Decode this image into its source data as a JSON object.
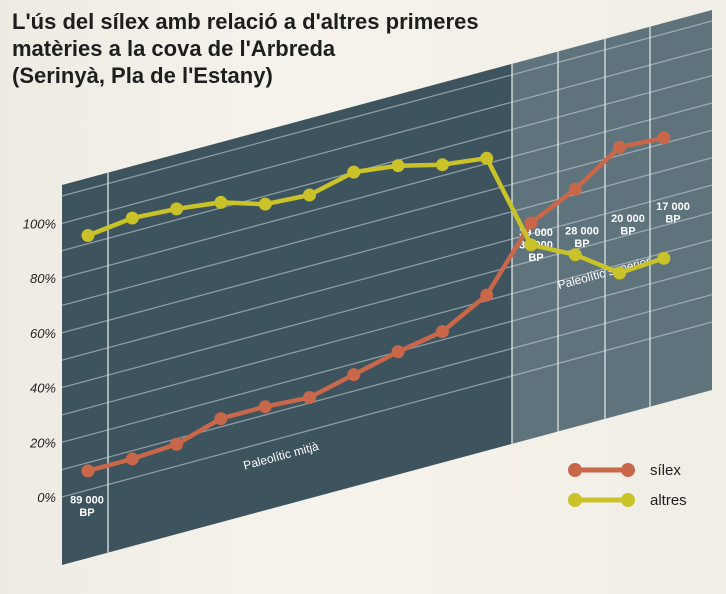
{
  "title_lines": [
    "L'ús del sílex amb relació a d'altres primeres",
    "matèries  a la cova de l'Arbreda",
    "(Serinyà, Pla de l'Estany)"
  ],
  "chart_data": {
    "type": "line",
    "title": "L'ús del sílex amb relació a d'altres primeres matèries  a la cova de l'Arbreda (Serinyà, Pla de l'Estany)",
    "xlabel": "",
    "ylabel": "",
    "x": [
      1,
      2,
      3,
      4,
      5,
      6,
      7,
      8,
      9,
      10,
      11,
      12,
      13,
      14
    ],
    "ylim": [
      0,
      100
    ],
    "y_ticks": [
      "0%",
      "20%",
      "40%",
      "60%",
      "80%",
      "100%"
    ],
    "grid": true,
    "legend_position": "bottom-right",
    "series": [
      {
        "name": "sílex",
        "color": "#c8674a",
        "values": [
          7,
          7,
          8,
          13,
          13,
          12,
          16,
          20,
          23,
          32,
          54,
          62,
          73,
          72
        ]
      },
      {
        "name": "altres",
        "color": "#c9c229",
        "values": [
          93,
          95,
          94,
          92,
          87,
          86,
          90,
          88,
          84,
          82,
          46,
          38,
          27,
          28
        ]
      }
    ],
    "date_labels": [
      {
        "lines": [
          "89 000",
          "BP"
        ]
      },
      {
        "lines": [
          "39 000",
          "37 000",
          "BP"
        ]
      },
      {
        "lines": [
          "28 000",
          "BP"
        ]
      },
      {
        "lines": [
          "20 000",
          "BP"
        ]
      },
      {
        "lines": [
          "17 000",
          "BP"
        ]
      }
    ],
    "periods": [
      "Paleolític mitjà",
      "Paleolític superior"
    ]
  }
}
